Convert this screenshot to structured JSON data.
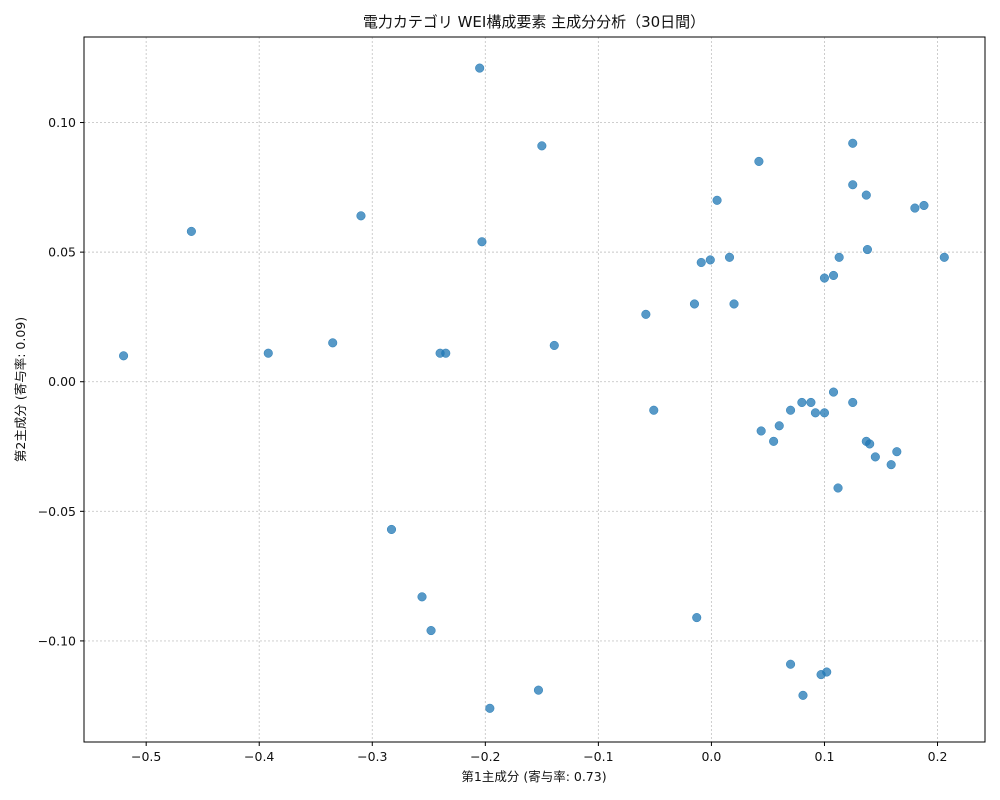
{
  "chart_data": {
    "type": "scatter",
    "title": "電力カテゴリ WEI構成要素 主成分分析（30日間）",
    "xlabel": "第1主成分 (寄与率: 0.73)",
    "ylabel": "第2主成分 (寄与率: 0.09)",
    "xlim": [
      -0.555,
      0.242
    ],
    "ylim": [
      -0.139,
      0.133
    ],
    "xticks": [
      -0.5,
      -0.4,
      -0.3,
      -0.2,
      -0.1,
      0.0,
      0.1,
      0.2
    ],
    "xtick_labels": [
      "−0.5",
      "−0.4",
      "−0.3",
      "−0.2",
      "−0.1",
      "0.0",
      "0.1",
      "0.2"
    ],
    "yticks": [
      -0.1,
      -0.05,
      0.0,
      0.05,
      0.1
    ],
    "ytick_labels": [
      "−0.10",
      "−0.05",
      "0.00",
      "0.05",
      "0.10"
    ],
    "grid": true,
    "color": "#1f77b4",
    "points": [
      {
        "x": -0.205,
        "y": 0.121
      },
      {
        "x": -0.15,
        "y": 0.091
      },
      {
        "x": 0.125,
        "y": 0.092
      },
      {
        "x": 0.042,
        "y": 0.085
      },
      {
        "x": 0.125,
        "y": 0.076
      },
      {
        "x": 0.137,
        "y": 0.072
      },
      {
        "x": 0.005,
        "y": 0.07
      },
      {
        "x": 0.18,
        "y": 0.067
      },
      {
        "x": 0.188,
        "y": 0.068
      },
      {
        "x": -0.31,
        "y": 0.064
      },
      {
        "x": -0.46,
        "y": 0.058
      },
      {
        "x": -0.203,
        "y": 0.054
      },
      {
        "x": 0.138,
        "y": 0.051
      },
      {
        "x": 0.016,
        "y": 0.048
      },
      {
        "x": 0.113,
        "y": 0.048
      },
      {
        "x": 0.206,
        "y": 0.048
      },
      {
        "x": -0.001,
        "y": 0.047
      },
      {
        "x": -0.009,
        "y": 0.046
      },
      {
        "x": 0.108,
        "y": 0.041
      },
      {
        "x": 0.1,
        "y": 0.04
      },
      {
        "x": -0.015,
        "y": 0.03
      },
      {
        "x": 0.02,
        "y": 0.03
      },
      {
        "x": -0.058,
        "y": 0.026
      },
      {
        "x": -0.335,
        "y": 0.015
      },
      {
        "x": -0.139,
        "y": 0.014
      },
      {
        "x": -0.52,
        "y": 0.01
      },
      {
        "x": -0.392,
        "y": 0.011
      },
      {
        "x": -0.24,
        "y": 0.011
      },
      {
        "x": -0.235,
        "y": 0.011
      },
      {
        "x": 0.108,
        "y": -0.004
      },
      {
        "x": 0.088,
        "y": -0.008
      },
      {
        "x": 0.125,
        "y": -0.008
      },
      {
        "x": 0.08,
        "y": -0.008
      },
      {
        "x": -0.051,
        "y": -0.011
      },
      {
        "x": 0.07,
        "y": -0.011
      },
      {
        "x": 0.1,
        "y": -0.012
      },
      {
        "x": 0.092,
        "y": -0.012
      },
      {
        "x": 0.06,
        "y": -0.017
      },
      {
        "x": 0.044,
        "y": -0.019
      },
      {
        "x": 0.055,
        "y": -0.023
      },
      {
        "x": 0.137,
        "y": -0.023
      },
      {
        "x": 0.14,
        "y": -0.024
      },
      {
        "x": 0.164,
        "y": -0.027
      },
      {
        "x": 0.145,
        "y": -0.029
      },
      {
        "x": 0.159,
        "y": -0.032
      },
      {
        "x": 0.112,
        "y": -0.041
      },
      {
        "x": -0.283,
        "y": -0.057
      },
      {
        "x": -0.256,
        "y": -0.083
      },
      {
        "x": -0.248,
        "y": -0.096
      },
      {
        "x": -0.013,
        "y": -0.091
      },
      {
        "x": 0.07,
        "y": -0.109
      },
      {
        "x": 0.097,
        "y": -0.113
      },
      {
        "x": 0.102,
        "y": -0.112
      },
      {
        "x": -0.153,
        "y": -0.119
      },
      {
        "x": 0.081,
        "y": -0.121
      },
      {
        "x": -0.196,
        "y": -0.126
      }
    ]
  }
}
